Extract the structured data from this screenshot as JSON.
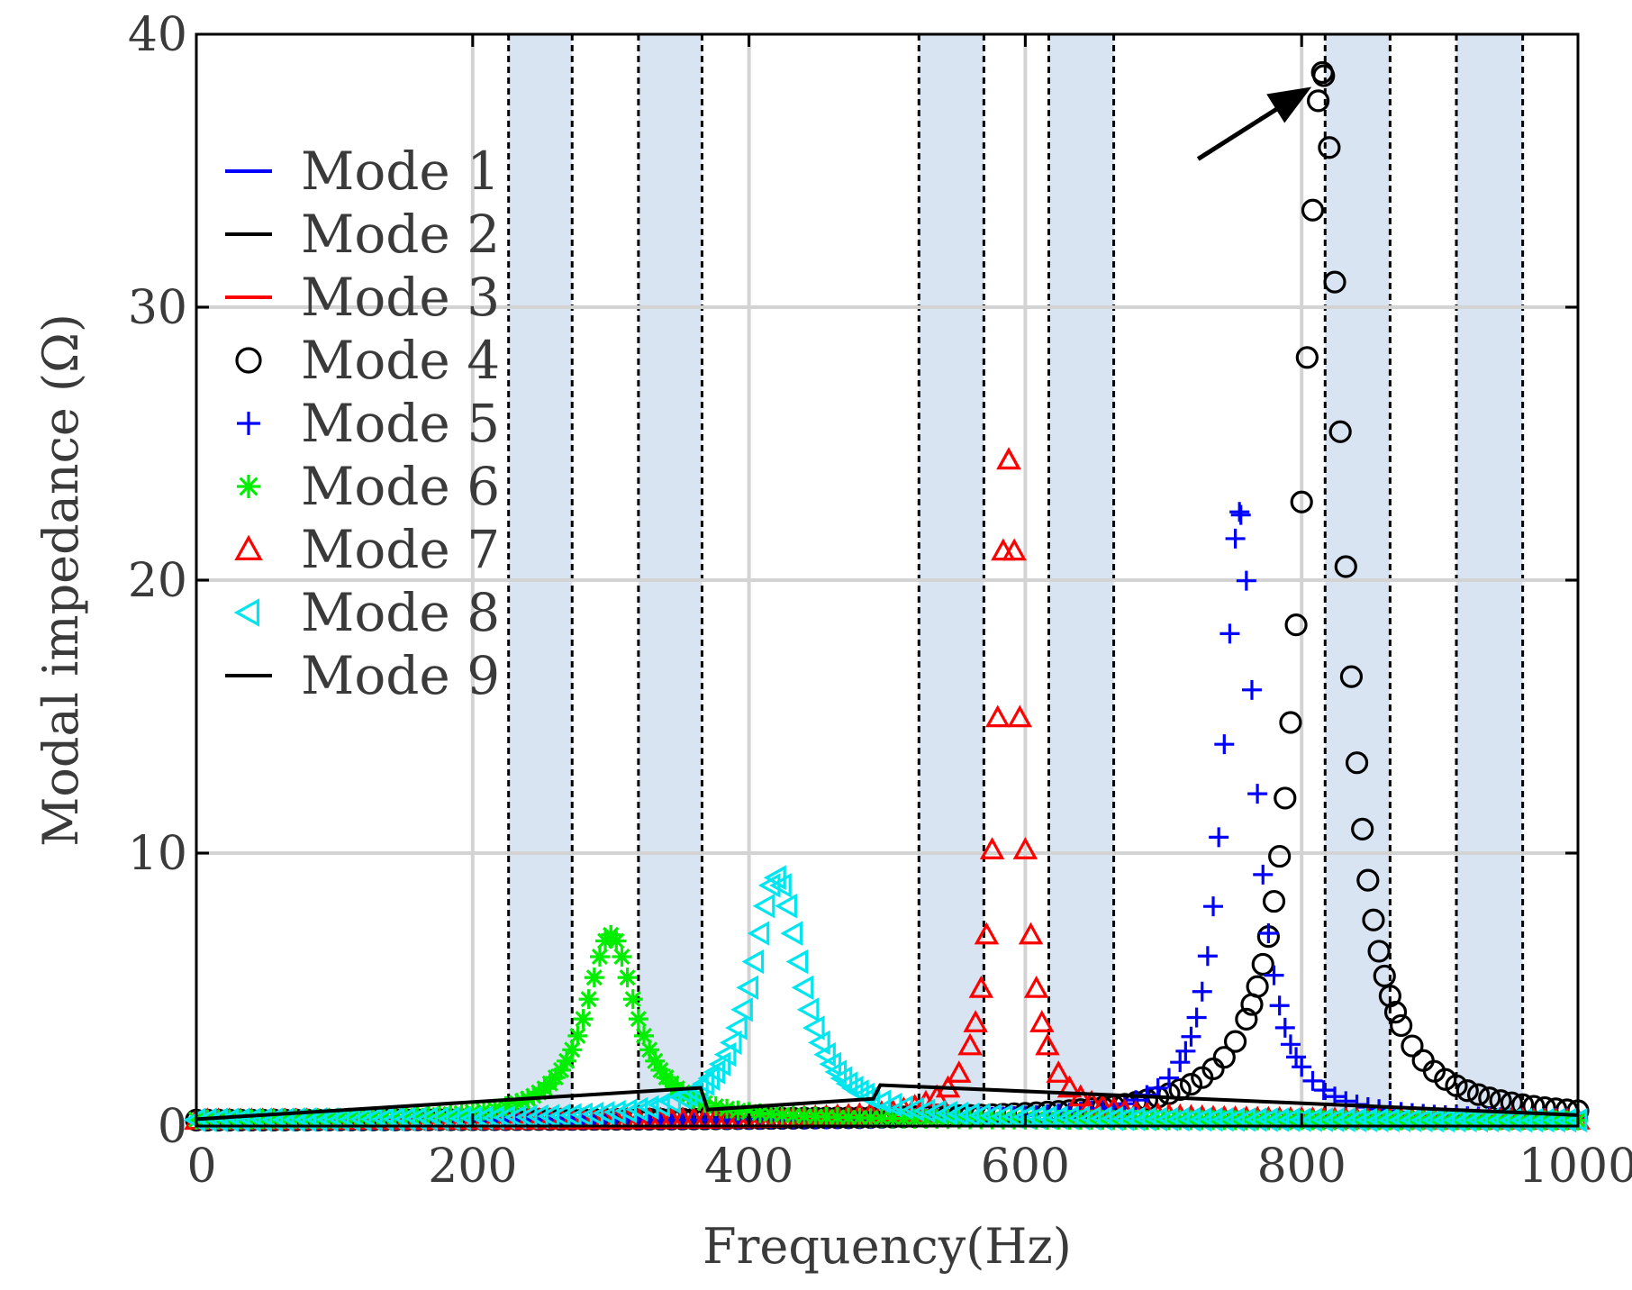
{
  "chart_data": {
    "type": "scatter",
    "title": "",
    "xlabel": "Frequency(Hz)",
    "ylabel": "Modal impedance (Ω)",
    "xlim": [
      0,
      1000
    ],
    "ylim": [
      0,
      40
    ],
    "xticks": [
      0,
      200,
      400,
      600,
      800,
      1000
    ],
    "yticks": [
      0,
      10,
      20,
      30,
      40
    ],
    "grid": true,
    "legend_position": "left",
    "shaded_bands": [
      [
        226,
        272
      ],
      [
        320,
        366
      ],
      [
        523,
        570
      ],
      [
        617,
        664
      ],
      [
        817,
        864
      ],
      [
        912,
        960
      ]
    ],
    "annotation": {
      "type": "arrow",
      "x": 815,
      "y": 38.4,
      "description": "Mode 4 peak"
    },
    "series": [
      {
        "name": "Mode 1",
        "marker": "line",
        "color": "#0000ff",
        "points": [
          [
            0,
            0.2
          ],
          [
            1000,
            0.2
          ]
        ]
      },
      {
        "name": "Mode 2",
        "marker": "line",
        "color": "#000000",
        "points": [
          [
            0,
            0.2
          ],
          [
            1000,
            0.2
          ]
        ]
      },
      {
        "name": "Mode 3",
        "marker": "line",
        "color": "#ff0000",
        "points": [
          [
            0,
            0.2
          ],
          [
            1000,
            0.2
          ]
        ]
      },
      {
        "name": "Mode 4",
        "marker": "circle",
        "color": "#000000",
        "peak_x": 815,
        "peak_y": 38.4,
        "base": 0.2,
        "width": 18
      },
      {
        "name": "Mode 5",
        "marker": "plus",
        "color": "#0000ff",
        "peak_x": 755,
        "peak_y": 22.3,
        "base": 0.2,
        "width": 14
      },
      {
        "name": "Mode 6",
        "marker": "asterisk",
        "color": "#00ee00",
        "peak_x": 300,
        "peak_y": 6.8,
        "base": 0.2,
        "width": 22
      },
      {
        "name": "Mode 7",
        "marker": "triangle-up",
        "color": "#ff0000",
        "peak_x": 588,
        "peak_y": 24.2,
        "base": 0.2,
        "width": 10
      },
      {
        "name": "Mode 8",
        "marker": "triangle-left",
        "color": "#00e5ee",
        "peak_x": 420,
        "peak_y": 8.9,
        "base": 0.2,
        "width": 22
      },
      {
        "name": "Mode 9",
        "marker": "line",
        "color": "#000000",
        "points": [
          [
            0,
            0.25
          ],
          [
            365,
            1.4
          ],
          [
            370,
            0.6
          ],
          [
            490,
            1.0
          ],
          [
            495,
            1.5
          ],
          [
            1000,
            0.4
          ]
        ]
      }
    ],
    "legend": [
      "Mode 1",
      "Mode 2",
      "Mode 3",
      "Mode 4",
      "Mode 5",
      "Mode 6",
      "Mode 7",
      "Mode 8",
      "Mode 9"
    ]
  },
  "colors": {
    "band": "#d8e4f1",
    "grid": "#d3d3d3",
    "axis": "#000000",
    "text": "#3a3a3a"
  }
}
